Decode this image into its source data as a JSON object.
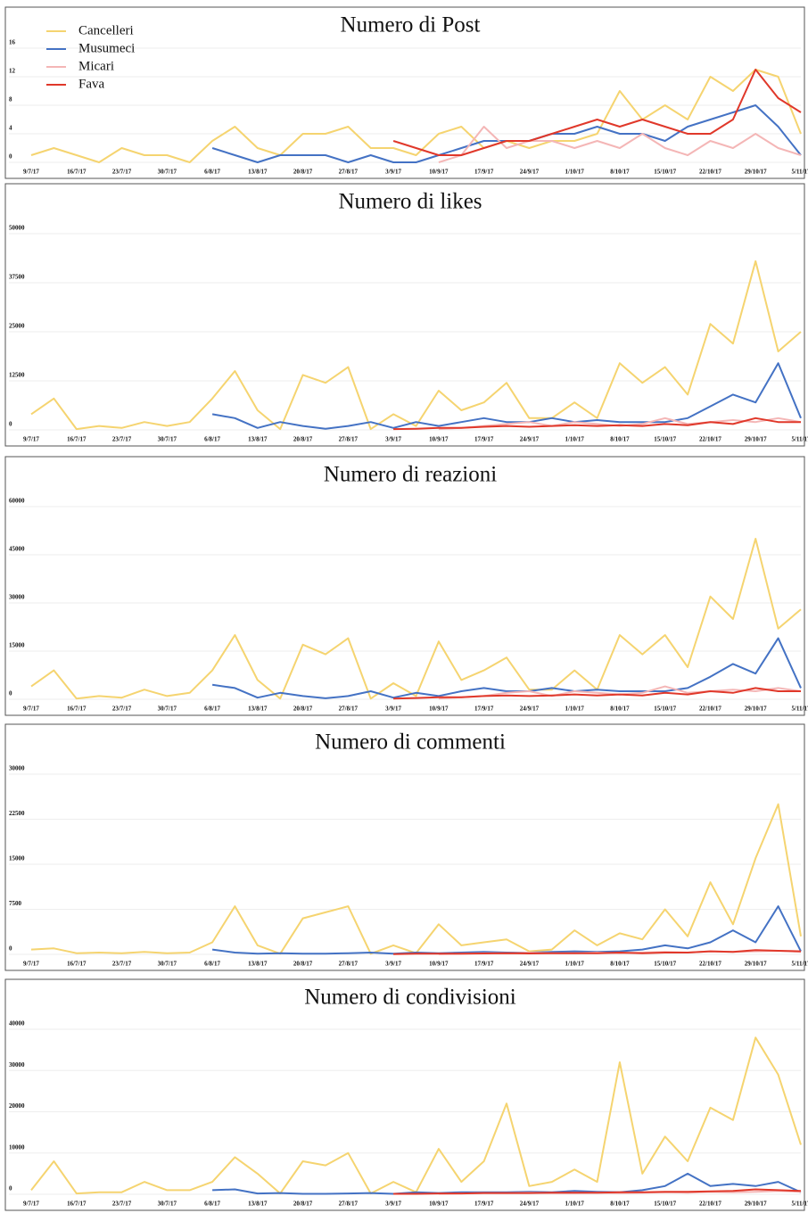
{
  "chart_data": [
    {
      "type": "line",
      "title": "Numero di Post",
      "legend": "upper left",
      "grid": true,
      "categories": [
        "9/7/17",
        null,
        "16/7/17",
        null,
        "23/7/17",
        null,
        "30/7/17",
        null,
        "6/8/17",
        null,
        "13/8/17",
        null,
        "20/8/17",
        null,
        "27/8/17",
        null,
        "3/9/17",
        null,
        "10/9/17",
        null,
        "17/9/17",
        null,
        "24/9/17",
        null,
        "1/10/17",
        null,
        "8/10/17",
        null,
        "15/10/17",
        null,
        "22/10/17",
        null,
        "29/10/17",
        null,
        "5/11/17"
      ],
      "ylim": [
        0,
        16
      ],
      "yticks": [
        0,
        4,
        8,
        12,
        16
      ],
      "series": [
        {
          "name": "Cancelleri",
          "color": "#f5d470",
          "values": [
            1,
            2,
            1,
            0,
            2,
            1,
            1,
            0,
            3,
            5,
            2,
            1,
            4,
            4,
            5,
            2,
            2,
            1,
            4,
            5,
            2,
            3,
            2,
            3,
            3,
            4,
            10,
            6,
            8,
            6,
            12,
            10,
            13,
            12,
            4
          ]
        },
        {
          "name": "Musumeci",
          "color": "#4472c4",
          "values": [
            null,
            null,
            null,
            null,
            null,
            null,
            null,
            null,
            2,
            1,
            0,
            1,
            1,
            1,
            0,
            1,
            0,
            0,
            1,
            2,
            3,
            3,
            3,
            4,
            4,
            5,
            4,
            4,
            3,
            5,
            6,
            7,
            8,
            5,
            1
          ]
        },
        {
          "name": "Micari",
          "color": "#f4b6b6",
          "values": [
            null,
            null,
            null,
            null,
            null,
            null,
            null,
            null,
            null,
            null,
            null,
            null,
            null,
            null,
            null,
            null,
            null,
            null,
            0,
            1,
            5,
            2,
            3,
            3,
            2,
            3,
            2,
            4,
            2,
            1,
            3,
            2,
            4,
            2,
            1
          ]
        },
        {
          "name": "Fava",
          "color": "#e0382a",
          "values": [
            null,
            null,
            null,
            null,
            null,
            null,
            null,
            null,
            null,
            null,
            null,
            null,
            null,
            null,
            null,
            null,
            3,
            2,
            1,
            1,
            2,
            3,
            3,
            4,
            5,
            6,
            5,
            6,
            5,
            4,
            4,
            6,
            13,
            9,
            7
          ]
        }
      ]
    },
    {
      "type": "line",
      "title": "Numero di likes",
      "grid": true,
      "categories": [
        "9/7/17",
        null,
        "16/7/17",
        null,
        "23/7/17",
        null,
        "30/7/17",
        null,
        "6/8/17",
        null,
        "13/8/17",
        null,
        "20/8/17",
        null,
        "27/8/17",
        null,
        "3/9/17",
        null,
        "10/9/17",
        null,
        "17/9/17",
        null,
        "24/9/17",
        null,
        "1/10/17",
        null,
        "8/10/17",
        null,
        "15/10/17",
        null,
        "22/10/17",
        null,
        "29/10/17",
        null,
        "5/11/17"
      ],
      "ylim": [
        0,
        50000
      ],
      "yticks": [
        0,
        12500,
        25000,
        37500,
        50000
      ],
      "series": [
        {
          "name": "Cancelleri",
          "color": "#f5d470",
          "values": [
            4000,
            8000,
            200,
            1000,
            500,
            2000,
            1000,
            2000,
            8000,
            15000,
            5000,
            200,
            14000,
            12000,
            16000,
            200,
            4000,
            1000,
            10000,
            5000,
            7000,
            12000,
            3000,
            3000,
            7000,
            3000,
            17000,
            12000,
            16000,
            9000,
            27000,
            22000,
            43000,
            20000,
            25000
          ]
        },
        {
          "name": "Musumeci",
          "color": "#4472c4",
          "values": [
            null,
            null,
            null,
            null,
            null,
            null,
            null,
            null,
            4000,
            3000,
            500,
            2000,
            1000,
            300,
            1000,
            2000,
            500,
            2000,
            1000,
            2000,
            3000,
            2000,
            2000,
            3000,
            2000,
            2500,
            2000,
            2000,
            2000,
            3000,
            6000,
            9000,
            7000,
            17000,
            3000
          ]
        },
        {
          "name": "Micari",
          "color": "#f4b6b6",
          "values": [
            null,
            null,
            null,
            null,
            null,
            null,
            null,
            null,
            null,
            null,
            null,
            null,
            null,
            null,
            null,
            null,
            null,
            null,
            200,
            500,
            1000,
            1500,
            2000,
            1000,
            2000,
            1500,
            1000,
            1500,
            3000,
            1500,
            2000,
            2500,
            2000,
            3000,
            2000
          ]
        },
        {
          "name": "Fava",
          "color": "#e0382a",
          "values": [
            null,
            null,
            null,
            null,
            null,
            null,
            null,
            null,
            null,
            null,
            null,
            null,
            null,
            null,
            null,
            null,
            200,
            300,
            500,
            500,
            800,
            1000,
            800,
            1000,
            1200,
            1000,
            1200,
            1000,
            1500,
            1200,
            2000,
            1500,
            3000,
            2000,
            2000
          ]
        }
      ]
    },
    {
      "type": "line",
      "title": "Numero di reazioni",
      "grid": true,
      "categories": [
        "9/7/17",
        null,
        "16/7/17",
        null,
        "23/7/17",
        null,
        "30/7/17",
        null,
        "6/8/17",
        null,
        "13/8/17",
        null,
        "20/8/17",
        null,
        "27/8/17",
        null,
        "3/9/17",
        null,
        "10/9/17",
        null,
        "17/9/17",
        null,
        "24/9/17",
        null,
        "1/10/17",
        null,
        "8/10/17",
        null,
        "15/10/17",
        null,
        "22/10/17",
        null,
        "29/10/17",
        null,
        "5/11/17"
      ],
      "ylim": [
        0,
        60000
      ],
      "yticks": [
        0,
        15000,
        30000,
        45000,
        60000
      ],
      "series": [
        {
          "name": "Cancelleri",
          "color": "#f5d470",
          "values": [
            4000,
            9000,
            200,
            1000,
            500,
            3000,
            1000,
            2000,
            9000,
            20000,
            6000,
            200,
            17000,
            14000,
            19000,
            200,
            5000,
            1000,
            18000,
            6000,
            9000,
            13000,
            3000,
            3000,
            9000,
            3000,
            20000,
            14000,
            20000,
            10000,
            32000,
            25000,
            50000,
            22000,
            28000
          ]
        },
        {
          "name": "Musumeci",
          "color": "#4472c4",
          "values": [
            null,
            null,
            null,
            null,
            null,
            null,
            null,
            null,
            4500,
            3500,
            500,
            2000,
            1000,
            300,
            1000,
            2500,
            500,
            2000,
            1000,
            2500,
            3500,
            2500,
            2500,
            3500,
            2500,
            3000,
            2500,
            2500,
            2500,
            3500,
            7000,
            11000,
            8000,
            19000,
            3500
          ]
        },
        {
          "name": "Micari",
          "color": "#f4b6b6",
          "values": [
            null,
            null,
            null,
            null,
            null,
            null,
            null,
            null,
            null,
            null,
            null,
            null,
            null,
            null,
            null,
            null,
            null,
            null,
            200,
            600,
            1000,
            2000,
            2500,
            1000,
            2500,
            2000,
            1500,
            2000,
            4000,
            2000,
            2500,
            3000,
            2500,
            3500,
            2500
          ]
        },
        {
          "name": "Fava",
          "color": "#e0382a",
          "values": [
            null,
            null,
            null,
            null,
            null,
            null,
            null,
            null,
            null,
            null,
            null,
            null,
            null,
            null,
            null,
            null,
            200,
            400,
            600,
            600,
            1000,
            1200,
            1000,
            1200,
            1500,
            1200,
            1500,
            1200,
            2000,
            1500,
            2500,
            2000,
            3500,
            2500,
            2500
          ]
        }
      ]
    },
    {
      "type": "line",
      "title": "Numero di commenti",
      "grid": true,
      "categories": [
        "9/7/17",
        null,
        "16/7/17",
        null,
        "23/7/17",
        null,
        "30/7/17",
        null,
        "6/8/17",
        null,
        "13/8/17",
        null,
        "20/8/17",
        null,
        "27/8/17",
        null,
        "3/9/17",
        null,
        "10/9/17",
        null,
        "17/9/17",
        null,
        "24/9/17",
        null,
        "1/10/17",
        null,
        "8/10/17",
        null,
        "15/10/17",
        null,
        "22/10/17",
        null,
        "29/10/17",
        null,
        "5/11/17"
      ],
      "ylim": [
        0,
        30000
      ],
      "yticks": [
        0,
        7500,
        15000,
        22500,
        30000
      ],
      "series": [
        {
          "name": "Cancelleri",
          "color": "#f5d470",
          "values": [
            800,
            1000,
            200,
            300,
            200,
            400,
            200,
            300,
            2000,
            8000,
            1500,
            100,
            6000,
            7000,
            8000,
            100,
            1500,
            200,
            5000,
            1500,
            2000,
            2500,
            500,
            800,
            4000,
            1500,
            3500,
            2500,
            7500,
            3000,
            12000,
            5000,
            16000,
            25000,
            3000
          ]
        },
        {
          "name": "Musumeci",
          "color": "#4472c4",
          "values": [
            null,
            null,
            null,
            null,
            null,
            null,
            null,
            null,
            800,
            300,
            100,
            200,
            100,
            100,
            200,
            300,
            100,
            300,
            200,
            300,
            400,
            300,
            300,
            400,
            500,
            400,
            500,
            800,
            1500,
            1000,
            2000,
            4000,
            2000,
            8000,
            500
          ]
        },
        {
          "name": "Micari",
          "color": "#f4b6b6",
          "values": [
            null,
            null,
            null,
            null,
            null,
            null,
            null,
            null,
            null,
            null,
            null,
            null,
            null,
            null,
            null,
            null,
            null,
            null,
            50,
            100,
            200,
            200,
            300,
            200,
            200,
            300,
            200,
            300,
            400,
            300,
            500,
            400,
            500,
            600,
            400
          ]
        },
        {
          "name": "Fava",
          "color": "#e0382a",
          "values": [
            null,
            null,
            null,
            null,
            null,
            null,
            null,
            null,
            null,
            null,
            null,
            null,
            null,
            null,
            null,
            null,
            50,
            100,
            100,
            100,
            150,
            200,
            150,
            200,
            200,
            200,
            300,
            200,
            300,
            300,
            500,
            400,
            700,
            600,
            500
          ]
        }
      ]
    },
    {
      "type": "line",
      "title": "Numero di condivisioni",
      "grid": true,
      "categories": [
        "9/7/17",
        null,
        "16/7/17",
        null,
        "23/7/17",
        null,
        "30/7/17",
        null,
        "6/8/17",
        null,
        "13/8/17",
        null,
        "20/8/17",
        null,
        "27/8/17",
        null,
        "3/9/17",
        null,
        "10/9/17",
        null,
        "17/9/17",
        null,
        "24/9/17",
        null,
        "1/10/17",
        null,
        "8/10/17",
        null,
        "15/10/17",
        null,
        "22/10/17",
        null,
        "29/10/17",
        null,
        "5/11/17"
      ],
      "ylim": [
        0,
        40000
      ],
      "yticks": [
        0,
        10000,
        20000,
        30000,
        40000
      ],
      "series": [
        {
          "name": "Cancelleri",
          "color": "#f5d470",
          "values": [
            1000,
            8000,
            200,
            500,
            500,
            3000,
            1000,
            1000,
            3000,
            9000,
            5000,
            200,
            8000,
            7000,
            10000,
            200,
            3000,
            500,
            11000,
            3000,
            8000,
            22000,
            2000,
            3000,
            6000,
            3000,
            32000,
            5000,
            14000,
            8000,
            21000,
            18000,
            38000,
            29000,
            12000
          ]
        },
        {
          "name": "Musumeci",
          "color": "#4472c4",
          "values": [
            null,
            null,
            null,
            null,
            null,
            null,
            null,
            null,
            1000,
            1200,
            200,
            300,
            100,
            100,
            200,
            300,
            100,
            500,
            300,
            500,
            500,
            500,
            600,
            500,
            800,
            600,
            500,
            1000,
            2000,
            5000,
            2000,
            2500,
            2000,
            3000,
            500
          ]
        },
        {
          "name": "Micari",
          "color": "#f4b6b6",
          "values": [
            null,
            null,
            null,
            null,
            null,
            null,
            null,
            null,
            null,
            null,
            null,
            null,
            null,
            null,
            null,
            null,
            null,
            null,
            100,
            200,
            300,
            300,
            400,
            300,
            300,
            400,
            300,
            400,
            500,
            400,
            600,
            500,
            600,
            800,
            600
          ]
        },
        {
          "name": "Fava",
          "color": "#e0382a",
          "values": [
            null,
            null,
            null,
            null,
            null,
            null,
            null,
            null,
            null,
            null,
            null,
            null,
            null,
            null,
            null,
            null,
            100,
            100,
            200,
            200,
            300,
            300,
            300,
            400,
            400,
            400,
            500,
            500,
            600,
            600,
            700,
            800,
            1200,
            1000,
            800
          ]
        }
      ]
    }
  ]
}
